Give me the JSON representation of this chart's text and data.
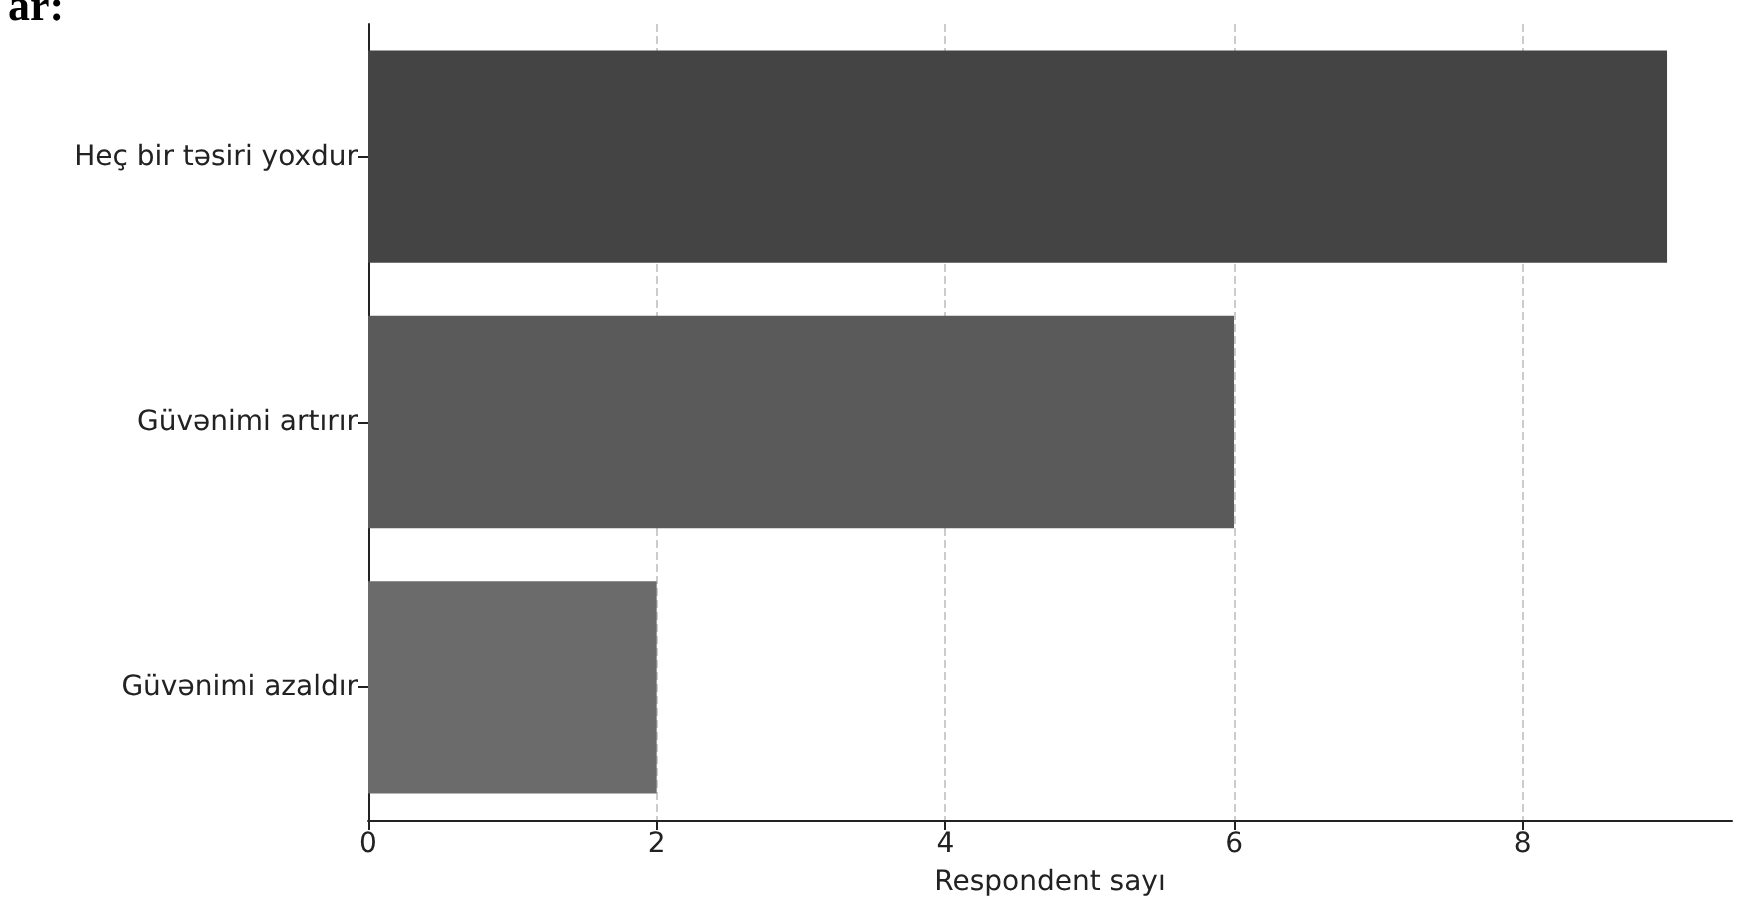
{
  "chart_data": {
    "type": "bar",
    "orientation": "horizontal",
    "xlabel": "Respondent sayı",
    "categories": [
      "Heç bir təsiri yoxdur",
      "Güvənimi artırır",
      "Güvənimi azaldır"
    ],
    "values": [
      9,
      6,
      2
    ],
    "colors": [
      "#444444",
      "#5a5a5a",
      "#6b6b6b"
    ],
    "xlim": [
      0,
      9.45
    ],
    "xticks": [
      0,
      2,
      4,
      6,
      8
    ],
    "grid": "x",
    "annotations": [
      "ar:"
    ]
  }
}
